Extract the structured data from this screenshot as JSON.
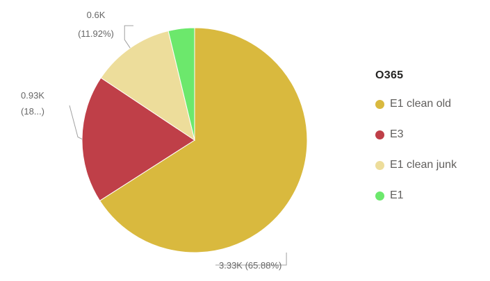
{
  "chart_data": {
    "type": "pie",
    "legend_title": "O365",
    "legend_position": "right",
    "slices": [
      {
        "name": "E1 clean old",
        "value": 3.33,
        "percent": 65.88,
        "label": "3.33K (65.88%)",
        "color": "#D9B93E"
      },
      {
        "name": "E3",
        "value": 0.93,
        "percent": 18.4,
        "label_line1": "0.93K",
        "label_line2": "(18...)",
        "color": "#BF3F48"
      },
      {
        "name": "E1 clean junk",
        "value": 0.6,
        "percent": 11.92,
        "label_line1": "0.6K",
        "label_line2": "(11.92%)",
        "color": "#EDDD9B"
      },
      {
        "name": "E1",
        "value": 0.19,
        "percent": 3.8,
        "color": "#6CE86C"
      }
    ]
  }
}
